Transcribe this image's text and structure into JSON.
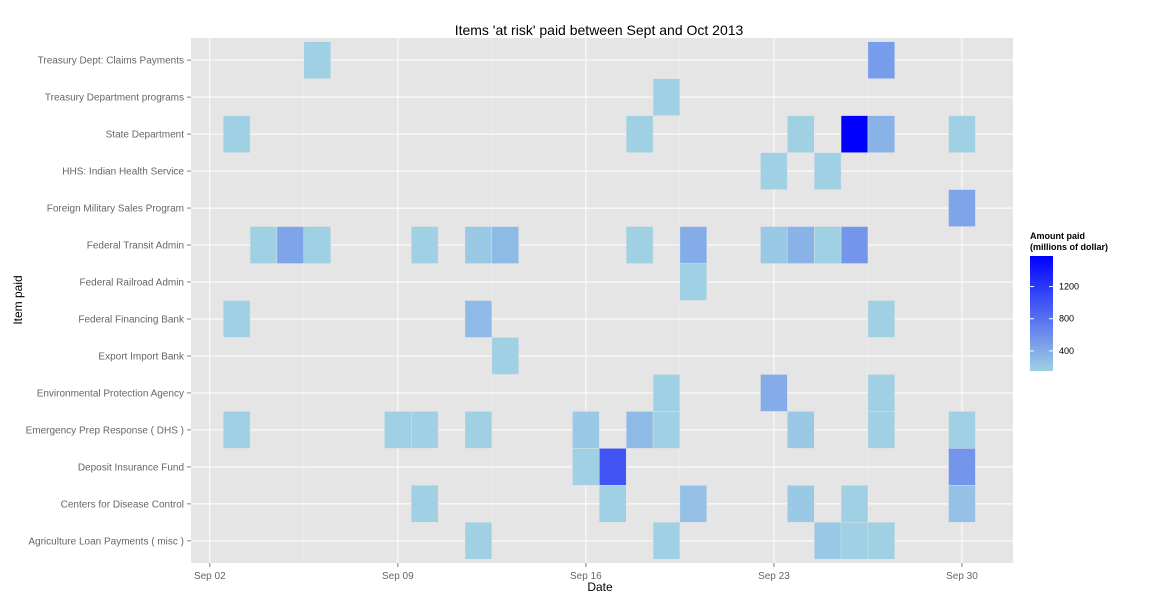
{
  "chart_data": {
    "type": "heatmap",
    "title": "Items 'at risk' paid between Sept and Oct 2013",
    "xlabel": "Date",
    "ylabel": "Item paid",
    "x_ticks": [
      {
        "label": "Sep 02",
        "day": 2
      },
      {
        "label": "Sep 09",
        "day": 9
      },
      {
        "label": "Sep 16",
        "day": 16
      },
      {
        "label": "Sep 23",
        "day": 23
      },
      {
        "label": "Sep 30",
        "day": 30
      }
    ],
    "x_range_days": [
      1.3,
      31.9
    ],
    "grid": true,
    "categories": [
      "Treasury Dept: Claims Payments",
      "Treasury Department programs",
      "State Department",
      "HHS: Indian Health Service",
      "Foreign Military Sales Program",
      "Federal Transit Admin",
      "Federal Railroad Admin",
      "Federal Financing Bank",
      "Export Import Bank",
      "Environmental Protection Agency",
      "Emergency Prep Response ( DHS )",
      "Deposit Insurance Fund",
      "Centers for Disease Control",
      "Agriculture Loan Payments ( misc )"
    ],
    "legend": {
      "title_lines": [
        "Amount paid",
        "(millions of dollar)"
      ],
      "ticks": [
        400,
        800,
        1200
      ],
      "min": 150,
      "max": 1580,
      "low_color": "#9fd0e3",
      "high_color": "#0000ff",
      "position": "right"
    },
    "cells": [
      {
        "item": "Treasury Dept: Claims Payments",
        "day": 6,
        "value": 150
      },
      {
        "item": "Treasury Dept: Claims Payments",
        "day": 27,
        "value": 500
      },
      {
        "item": "Treasury Department programs",
        "day": 19,
        "value": 150
      },
      {
        "item": "State Department",
        "day": 3,
        "value": 150
      },
      {
        "item": "State Department",
        "day": 18,
        "value": 150
      },
      {
        "item": "State Department",
        "day": 24,
        "value": 150
      },
      {
        "item": "State Department",
        "day": 26,
        "value": 1580
      },
      {
        "item": "State Department",
        "day": 27,
        "value": 350
      },
      {
        "item": "State Department",
        "day": 30,
        "value": 150
      },
      {
        "item": "HHS: Indian Health Service",
        "day": 23,
        "value": 150
      },
      {
        "item": "HHS: Indian Health Service",
        "day": 25,
        "value": 150
      },
      {
        "item": "Foreign Military Sales Program",
        "day": 30,
        "value": 450
      },
      {
        "item": "Federal Transit Admin",
        "day": 4,
        "value": 150
      },
      {
        "item": "Federal Transit Admin",
        "day": 5,
        "value": 450
      },
      {
        "item": "Federal Transit Admin",
        "day": 6,
        "value": 150
      },
      {
        "item": "Federal Transit Admin",
        "day": 10,
        "value": 150
      },
      {
        "item": "Federal Transit Admin",
        "day": 12,
        "value": 200
      },
      {
        "item": "Federal Transit Admin",
        "day": 13,
        "value": 300
      },
      {
        "item": "Federal Transit Admin",
        "day": 18,
        "value": 150
      },
      {
        "item": "Federal Transit Admin",
        "day": 20,
        "value": 400
      },
      {
        "item": "Federal Transit Admin",
        "day": 23,
        "value": 200
      },
      {
        "item": "Federal Transit Admin",
        "day": 24,
        "value": 350
      },
      {
        "item": "Federal Transit Admin",
        "day": 25,
        "value": 150
      },
      {
        "item": "Federal Transit Admin",
        "day": 26,
        "value": 550
      },
      {
        "item": "Federal Railroad Admin",
        "day": 20,
        "value": 150
      },
      {
        "item": "Federal Financing Bank",
        "day": 3,
        "value": 150
      },
      {
        "item": "Federal Financing Bank",
        "day": 12,
        "value": 300
      },
      {
        "item": "Federal Financing Bank",
        "day": 27,
        "value": 150
      },
      {
        "item": "Export Import Bank",
        "day": 13,
        "value": 150
      },
      {
        "item": "Environmental Protection Agency",
        "day": 19,
        "value": 150
      },
      {
        "item": "Environmental Protection Agency",
        "day": 23,
        "value": 400
      },
      {
        "item": "Environmental Protection Agency",
        "day": 27,
        "value": 150
      },
      {
        "item": "Emergency Prep Response ( DHS )",
        "day": 3,
        "value": 150
      },
      {
        "item": "Emergency Prep Response ( DHS )",
        "day": 9,
        "value": 150
      },
      {
        "item": "Emergency Prep Response ( DHS )",
        "day": 10,
        "value": 150
      },
      {
        "item": "Emergency Prep Response ( DHS )",
        "day": 12,
        "value": 150
      },
      {
        "item": "Emergency Prep Response ( DHS )",
        "day": 16,
        "value": 200
      },
      {
        "item": "Emergency Prep Response ( DHS )",
        "day": 18,
        "value": 300
      },
      {
        "item": "Emergency Prep Response ( DHS )",
        "day": 19,
        "value": 150
      },
      {
        "item": "Emergency Prep Response ( DHS )",
        "day": 24,
        "value": 200
      },
      {
        "item": "Emergency Prep Response ( DHS )",
        "day": 27,
        "value": 150
      },
      {
        "item": "Emergency Prep Response ( DHS )",
        "day": 30,
        "value": 150
      },
      {
        "item": "Deposit Insurance Fund",
        "day": 16,
        "value": 150
      },
      {
        "item": "Deposit Insurance Fund",
        "day": 17,
        "value": 1000
      },
      {
        "item": "Deposit Insurance Fund",
        "day": 30,
        "value": 550
      },
      {
        "item": "Centers for Disease Control",
        "day": 10,
        "value": 150
      },
      {
        "item": "Centers for Disease Control",
        "day": 17,
        "value": 150
      },
      {
        "item": "Centers for Disease Control",
        "day": 20,
        "value": 250
      },
      {
        "item": "Centers for Disease Control",
        "day": 24,
        "value": 200
      },
      {
        "item": "Centers for Disease Control",
        "day": 26,
        "value": 150
      },
      {
        "item": "Centers for Disease Control",
        "day": 30,
        "value": 250
      },
      {
        "item": "Agriculture Loan Payments ( misc )",
        "day": 12,
        "value": 150
      },
      {
        "item": "Agriculture Loan Payments ( misc )",
        "day": 19,
        "value": 150
      },
      {
        "item": "Agriculture Loan Payments ( misc )",
        "day": 25,
        "value": 200
      },
      {
        "item": "Agriculture Loan Payments ( misc )",
        "day": 26,
        "value": 150
      },
      {
        "item": "Agriculture Loan Payments ( misc )",
        "day": 27,
        "value": 150
      }
    ]
  }
}
